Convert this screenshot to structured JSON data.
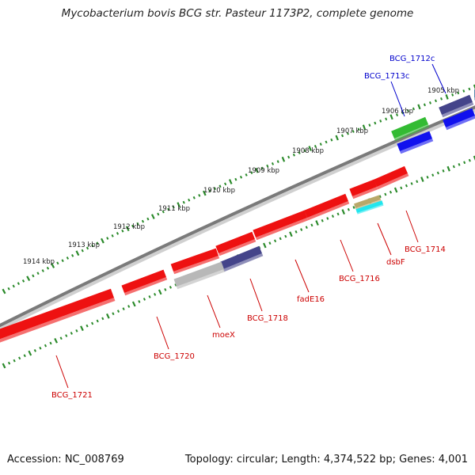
{
  "header": {
    "title": "Mycobacterium bovis BCG str. Pasteur 1173P2, complete genome"
  },
  "footer": {
    "accession": "Accession: NC_008769",
    "summary": "Topology: circular; Length: 4,374,522 bp; Genes: 4,001"
  },
  "ticks": [
    {
      "label": "1905 kbp"
    },
    {
      "label": "1906 kbp"
    },
    {
      "label": "1907 kbp"
    },
    {
      "label": "1908 kbp"
    },
    {
      "label": "1909 kbp"
    },
    {
      "label": "1910 kbp"
    },
    {
      "label": "1911 kbp"
    },
    {
      "label": "1912 kbp"
    },
    {
      "label": "1913 kbp"
    },
    {
      "label": "1914 kbp"
    }
  ],
  "genes": [
    {
      "name": "BCG_1712c",
      "strand": "reverse"
    },
    {
      "name": "BCG_1713c",
      "strand": "reverse"
    },
    {
      "name": "BCG_1714",
      "strand": "forward"
    },
    {
      "name": "dsbF",
      "strand": "forward"
    },
    {
      "name": "BCG_1716",
      "strand": "forward"
    },
    {
      "name": "fadE16",
      "strand": "forward"
    },
    {
      "name": "BCG_1718",
      "strand": "forward"
    },
    {
      "name": "moeX",
      "strand": "forward"
    },
    {
      "name": "BCG_1720",
      "strand": "forward"
    },
    {
      "name": "BCG_1721",
      "strand": "forward"
    }
  ],
  "colors": {
    "backbone": "#7a7a7a",
    "tick": "#2a8a2a",
    "forward_gene": "#ee1111",
    "reverse_gene": "#1111ee",
    "green_gene": "#33bb33",
    "navy_gene": "#44448a",
    "gray_gene": "#b8b8b8",
    "cyan_gene": "#22e6ee",
    "tan_gene": "#b8a86a",
    "label_red": "#cc0000",
    "label_blue": "#0000cc"
  }
}
